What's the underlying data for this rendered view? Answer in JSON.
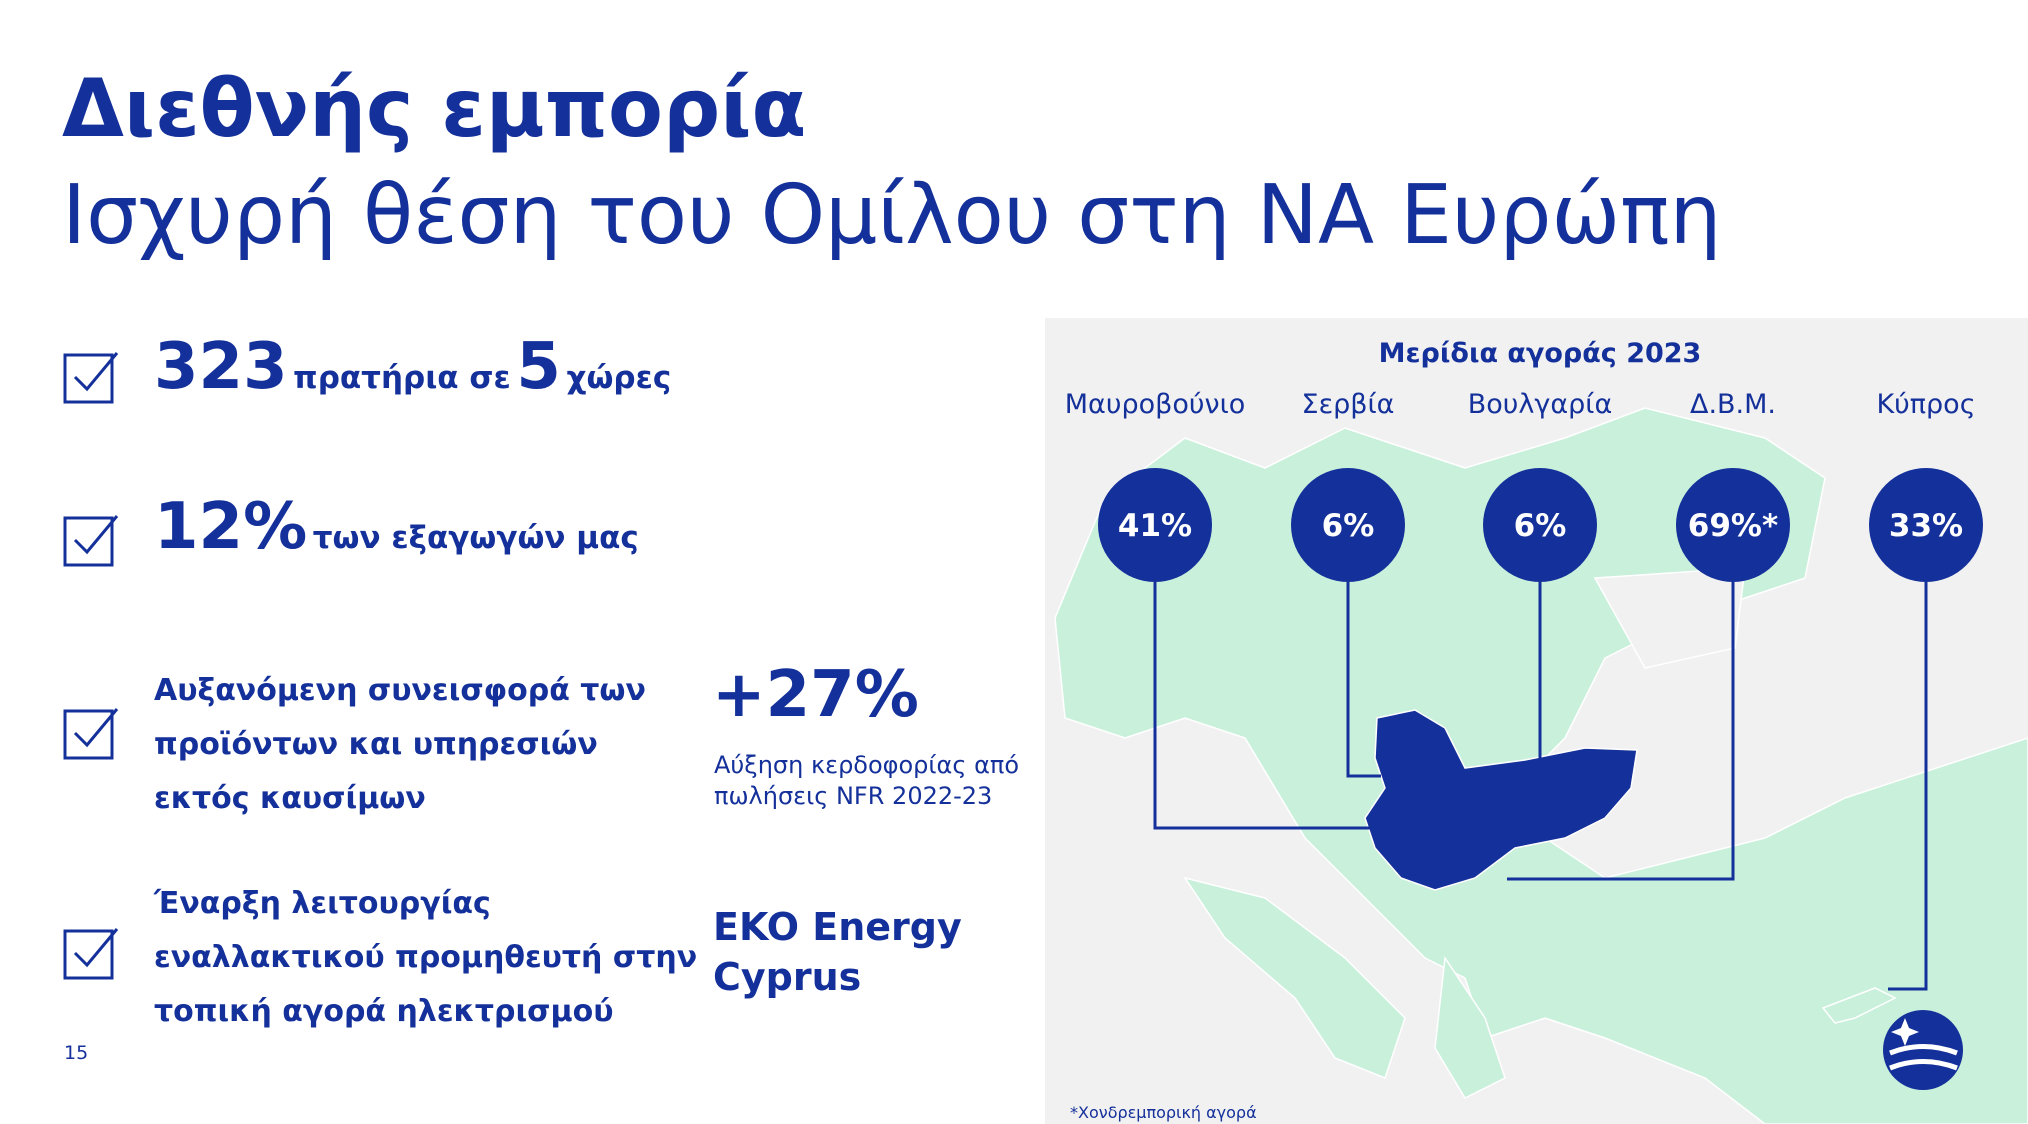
{
  "header": {
    "title": "Διεθνής εμπορία",
    "subtitle": "Ισχυρή θέση του Ομίλου στη ΝΑ Ευρώπη"
  },
  "highlights": [
    {
      "number": "323",
      "text": "πρατήρια σε",
      "number2": "5",
      "text2": "χώρες"
    },
    {
      "number": "12%",
      "text": "των εξαγωγών μας"
    },
    {
      "lines": [
        "Αυξανόμενη συνεισφορά των",
        "προϊόντων και υπηρεσιών",
        "εκτός καυσίμων"
      ],
      "stat": "+27%",
      "caption": [
        "Αύξηση κερδοφορίας από",
        "πωλήσεις NFR 2022-23"
      ]
    },
    {
      "lines": [
        "Έναρξη λειτουργίας",
        "εναλλακτικού προμηθευτή στην",
        "τοπική αγορά ηλεκτρισμού"
      ],
      "stat_lines": [
        "EKO Energy",
        "Cyprus"
      ]
    }
  ],
  "map": {
    "title": "Μερίδια αγοράς 2023",
    "markets": [
      {
        "name": "Μαυροβούνιο",
        "share": "41%"
      },
      {
        "name": "Σερβία",
        "share": "6%"
      },
      {
        "name": "Βουλγαρία",
        "share": "6%"
      },
      {
        "name": "Δ.Β.Μ.",
        "share": "69%*"
      },
      {
        "name": "Κύπρος",
        "share": "33%"
      }
    ],
    "footnote": "*Χονδρεμπορική αγορά"
  },
  "page_number": "15"
}
